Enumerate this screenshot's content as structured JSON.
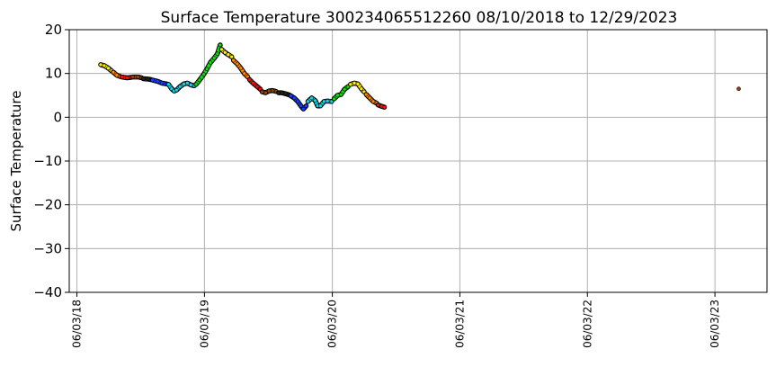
{
  "chart_data": {
    "type": "scatter",
    "title": "Surface Temperature 300234065512260  08/10/2018 to 12/29/2023",
    "xlabel": "",
    "ylabel": "Surface Temperature",
    "ylim": [
      -40,
      20
    ],
    "yticks": [
      -40,
      -30,
      -20,
      -10,
      0,
      10,
      20
    ],
    "xlim": [
      "2018-05-12",
      "2023-10-30"
    ],
    "xticks": [
      {
        "date": "2018-06-03",
        "label": "06/03/18"
      },
      {
        "date": "2019-06-03",
        "label": "06/03/19"
      },
      {
        "date": "2020-06-03",
        "label": "06/03/20"
      },
      {
        "date": "2021-06-03",
        "label": "06/03/21"
      },
      {
        "date": "2022-06-03",
        "label": "06/03/22"
      },
      {
        "date": "2023-06-03",
        "label": "06/03/23"
      }
    ],
    "grid": true,
    "series": [
      {
        "color": "#ffee00",
        "points": [
          [
            "2018-08-10",
            12
          ],
          [
            "2018-08-20",
            11.8
          ],
          [
            "2018-09-01",
            11.2
          ],
          [
            "2018-09-10",
            10.6
          ]
        ]
      },
      {
        "color": "#ff8800",
        "points": [
          [
            "2018-09-15",
            10.3
          ],
          [
            "2018-09-25",
            9.6
          ],
          [
            "2018-10-05",
            9.3
          ]
        ]
      },
      {
        "color": "#ee1111",
        "points": [
          [
            "2018-10-10",
            9.2
          ],
          [
            "2018-10-25",
            9.0
          ],
          [
            "2018-11-05",
            9.1
          ]
        ]
      },
      {
        "color": "#8b4513",
        "points": [
          [
            "2018-11-10",
            9.2
          ],
          [
            "2018-11-25",
            9.2
          ],
          [
            "2018-12-05",
            9.0
          ]
        ]
      },
      {
        "color": "#222222",
        "points": [
          [
            "2018-12-10",
            8.8
          ],
          [
            "2018-12-25",
            8.7
          ],
          [
            "2019-01-01",
            8.6
          ]
        ]
      },
      {
        "color": "#1a3dff",
        "points": [
          [
            "2019-01-05",
            8.5
          ],
          [
            "2019-01-20",
            8.2
          ],
          [
            "2019-02-01",
            7.8
          ],
          [
            "2019-02-15",
            7.6
          ]
        ]
      },
      {
        "color": "#00ddee",
        "points": [
          [
            "2019-02-20",
            7.5
          ],
          [
            "2019-03-01",
            6.5
          ],
          [
            "2019-03-08",
            6.0
          ],
          [
            "2019-03-15",
            6.2
          ],
          [
            "2019-03-25",
            7.0
          ],
          [
            "2019-04-05",
            7.6
          ],
          [
            "2019-04-15",
            7.8
          ],
          [
            "2019-04-25",
            7.4
          ],
          [
            "2019-05-05",
            7.2
          ]
        ]
      },
      {
        "color": "#11dd11",
        "points": [
          [
            "2019-05-10",
            7.5
          ],
          [
            "2019-05-20",
            8.5
          ],
          [
            "2019-06-01",
            9.8
          ],
          [
            "2019-06-10",
            11.0
          ],
          [
            "2019-06-20",
            12.5
          ],
          [
            "2019-07-01",
            13.5
          ],
          [
            "2019-07-10",
            14.5
          ],
          [
            "2019-07-18",
            16.5
          ]
        ]
      },
      {
        "color": "#ffee00",
        "points": [
          [
            "2019-07-22",
            15.5
          ],
          [
            "2019-08-01",
            14.8
          ],
          [
            "2019-08-10",
            14.3
          ],
          [
            "2019-08-20",
            13.8
          ]
        ]
      },
      {
        "color": "#ff8800",
        "points": [
          [
            "2019-08-25",
            13.0
          ],
          [
            "2019-09-05",
            12.2
          ],
          [
            "2019-09-15",
            11.2
          ],
          [
            "2019-09-25",
            10.0
          ],
          [
            "2019-10-05",
            9.2
          ]
        ]
      },
      {
        "color": "#ee1111",
        "points": [
          [
            "2019-10-10",
            8.6
          ],
          [
            "2019-10-20",
            7.8
          ],
          [
            "2019-11-01",
            7.0
          ],
          [
            "2019-11-10",
            6.4
          ]
        ]
      },
      {
        "color": "#8b4513",
        "points": [
          [
            "2019-11-15",
            5.8
          ],
          [
            "2019-11-25",
            5.6
          ],
          [
            "2019-12-05",
            6.0
          ],
          [
            "2019-12-15",
            6.1
          ],
          [
            "2019-12-25",
            5.9
          ]
        ]
      },
      {
        "color": "#222222",
        "points": [
          [
            "2020-01-01",
            5.6
          ],
          [
            "2020-01-10",
            5.6
          ],
          [
            "2020-01-20",
            5.4
          ],
          [
            "2020-02-01",
            5.1
          ]
        ]
      },
      {
        "color": "#1a3dff",
        "points": [
          [
            "2020-02-05",
            4.9
          ],
          [
            "2020-02-15",
            4.4
          ],
          [
            "2020-02-25",
            3.6
          ],
          [
            "2020-03-05",
            2.6
          ],
          [
            "2020-03-12",
            1.9
          ],
          [
            "2020-03-20",
            2.6
          ]
        ]
      },
      {
        "color": "#00ddee",
        "points": [
          [
            "2020-03-25",
            3.6
          ],
          [
            "2020-04-05",
            4.4
          ],
          [
            "2020-04-15",
            3.8
          ],
          [
            "2020-04-22",
            2.6
          ],
          [
            "2020-04-30",
            2.6
          ],
          [
            "2020-05-10",
            3.6
          ],
          [
            "2020-05-20",
            3.7
          ],
          [
            "2020-06-01",
            3.6
          ]
        ]
      },
      {
        "color": "#11dd11",
        "points": [
          [
            "2020-06-08",
            4.2
          ],
          [
            "2020-06-18",
            5.0
          ],
          [
            "2020-06-28",
            5.2
          ],
          [
            "2020-07-08",
            6.4
          ],
          [
            "2020-07-18",
            7.0
          ]
        ]
      },
      {
        "color": "#ffee00",
        "points": [
          [
            "2020-07-25",
            7.5
          ],
          [
            "2020-08-05",
            7.8
          ],
          [
            "2020-08-15",
            7.6
          ],
          [
            "2020-08-25",
            6.5
          ],
          [
            "2020-09-02",
            5.8
          ]
        ]
      },
      {
        "color": "#ff8800",
        "points": [
          [
            "2020-09-08",
            5.2
          ],
          [
            "2020-09-18",
            4.4
          ],
          [
            "2020-09-28",
            3.6
          ],
          [
            "2020-10-08",
            3.2
          ]
        ]
      },
      {
        "color": "#ee1111",
        "points": [
          [
            "2020-10-12",
            2.8
          ],
          [
            "2020-10-22",
            2.5
          ],
          [
            "2020-10-30",
            2.3
          ]
        ]
      },
      {
        "color": "#8b4513",
        "points": [
          [
            "2023-08-10",
            6.5
          ]
        ]
      }
    ]
  }
}
